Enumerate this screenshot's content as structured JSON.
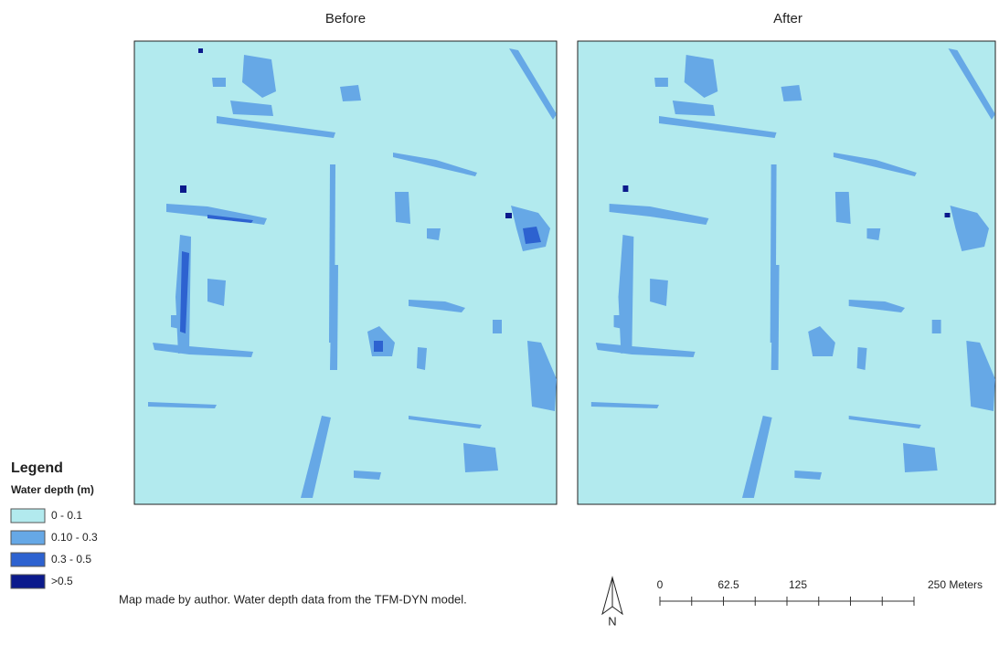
{
  "panels": [
    {
      "title": "Before"
    },
    {
      "title": "After"
    }
  ],
  "legend": {
    "title": "Legend",
    "subtitle": "Water depth (m)",
    "items": [
      {
        "label": "0 - 0.1",
        "color": "#b2eaee"
      },
      {
        "label": "0.10 - 0.3",
        "color": "#66a8e6"
      },
      {
        "label": "0.3 - 0.5",
        "color": "#2d62d0"
      },
      {
        "label": ">0.5",
        "color": "#0b1a8c"
      }
    ]
  },
  "credit": "Map made by author. Water depth data from the TFM-DYN model.",
  "north_arrow": "N",
  "scale_bar": {
    "labels": [
      "0",
      "62.5",
      "125",
      "250 Meters"
    ]
  }
}
